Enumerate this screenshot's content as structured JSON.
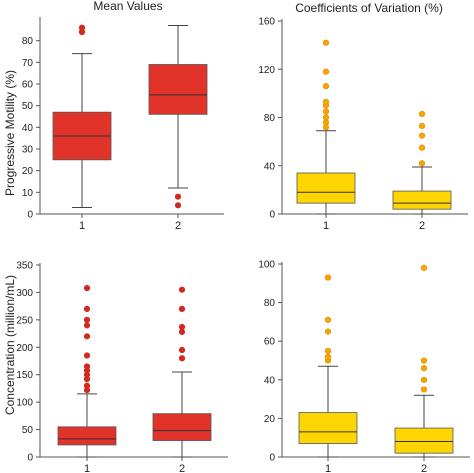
{
  "figure": {
    "title_left": "Mean Values",
    "title_right": "Coefficients of Variation (%)"
  },
  "colors": {
    "red_fill": "#E2332B",
    "red_outlier": "#D3281F",
    "yellow_fill": "#FFD500",
    "yellow_outlier": "#F7A600",
    "yellow_outlier_stroke": "#E08A00"
  },
  "chart_data": [
    {
      "type": "boxplot",
      "panel": "top-left",
      "title": "Mean Values",
      "ylabel": "Progressive Motility (%)",
      "ylim": [
        0,
        90
      ],
      "yticks": [
        0,
        10,
        20,
        30,
        40,
        50,
        60,
        70,
        80
      ],
      "categories": [
        "1",
        "2"
      ],
      "fill": "red",
      "boxes": [
        {
          "whisker_low": 3,
          "q1": 25,
          "median": 36,
          "q3": 47,
          "whisker_high": 74,
          "outliers": [
            84,
            86
          ]
        },
        {
          "whisker_low": 12,
          "q1": 46,
          "median": 55,
          "q3": 69,
          "whisker_high": 87,
          "outliers": [
            8,
            4
          ]
        }
      ]
    },
    {
      "type": "boxplot",
      "panel": "top-right",
      "title": "Coefficients of Variation (%)",
      "ylabel": "",
      "ylim": [
        0,
        160
      ],
      "yticks": [
        0,
        40,
        80,
        120,
        160
      ],
      "categories": [
        "1",
        "2"
      ],
      "fill": "yellow",
      "boxes": [
        {
          "whisker_low": 0,
          "q1": 9,
          "median": 18,
          "q3": 34,
          "whisker_high": 69,
          "outliers": [
            72,
            76,
            80,
            85,
            90,
            93,
            106,
            118,
            142
          ]
        },
        {
          "whisker_low": 0,
          "q1": 4,
          "median": 9,
          "q3": 19,
          "whisker_high": 39,
          "outliers": [
            42,
            55,
            65,
            73,
            83
          ]
        }
      ]
    },
    {
      "type": "boxplot",
      "panel": "bottom-left",
      "title": "",
      "ylabel": "Concentration (million/mL)",
      "ylim": [
        0,
        350
      ],
      "yticks": [
        0,
        50,
        100,
        150,
        200,
        250,
        300,
        350
      ],
      "categories": [
        "1",
        "2"
      ],
      "fill": "red",
      "boxes": [
        {
          "whisker_low": 0,
          "q1": 22,
          "median": 33,
          "q3": 55,
          "whisker_high": 115,
          "outliers": [
            122,
            130,
            142,
            150,
            158,
            165,
            185,
            220,
            240,
            250,
            270,
            308
          ]
        },
        {
          "whisker_low": 0,
          "q1": 30,
          "median": 48,
          "q3": 79,
          "whisker_high": 155,
          "outliers": [
            180,
            195,
            228,
            237,
            270,
            305
          ]
        }
      ]
    },
    {
      "type": "boxplot",
      "panel": "bottom-right",
      "title": "",
      "ylabel": "",
      "ylim": [
        0,
        100
      ],
      "yticks": [
        0,
        20,
        40,
        60,
        80,
        100
      ],
      "categories": [
        "1",
        "2"
      ],
      "fill": "yellow",
      "boxes": [
        {
          "whisker_low": 0,
          "q1": 7,
          "median": 13,
          "q3": 23,
          "whisker_high": 47,
          "outliers": [
            50,
            52,
            55,
            65,
            71,
            93
          ]
        },
        {
          "whisker_low": 0,
          "q1": 2,
          "median": 8,
          "q3": 15,
          "whisker_high": 32,
          "outliers": [
            35,
            40,
            46,
            50,
            98
          ]
        }
      ]
    }
  ]
}
